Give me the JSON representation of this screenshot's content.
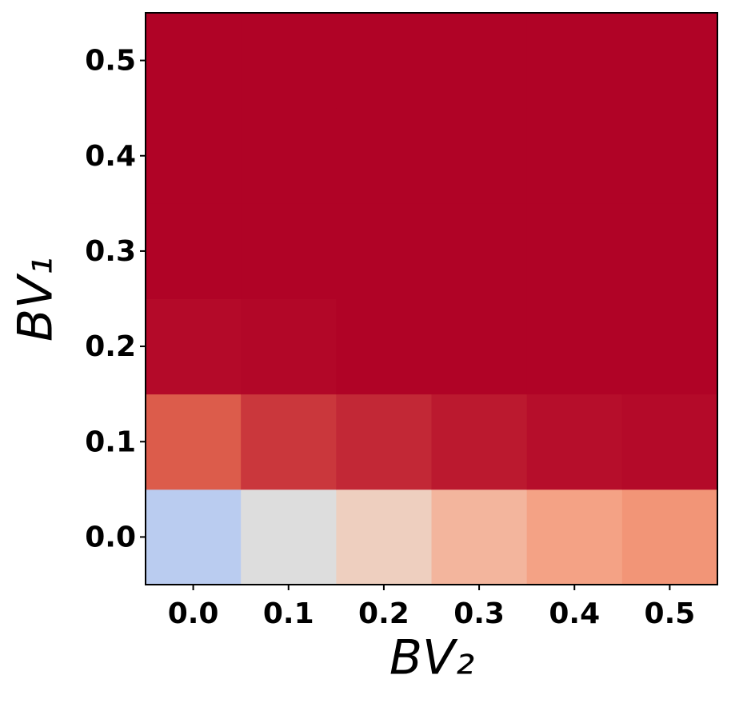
{
  "chart_data": {
    "type": "heatmap",
    "colorscale": "coolwarm",
    "zlim": [
      0,
      1
    ],
    "x": [
      0,
      0.1,
      0.2,
      0.3,
      0.4,
      0.5
    ],
    "y": [
      0,
      0.1,
      0.2,
      0.3,
      0.4,
      0.5
    ],
    "z": [
      [
        0.43,
        0.5,
        0.6,
        0.68,
        0.73,
        0.76
      ],
      [
        0.88,
        0.93,
        0.95,
        0.97,
        0.985,
        0.99
      ],
      [
        0.99,
        0.995,
        1,
        1,
        1,
        1
      ],
      [
        1,
        1,
        1,
        1,
        1,
        1
      ],
      [
        1,
        1,
        1,
        1,
        1,
        1
      ],
      [
        1,
        1,
        1,
        1,
        1,
        1
      ]
    ],
    "xlim": [
      -0.05,
      0.55
    ],
    "ylim": [
      -0.05,
      0.55
    ],
    "xticks": [
      {
        "value": 0,
        "label": "0.0"
      },
      0.1,
      0.2,
      0.3,
      0.4,
      0.5
    ],
    "yticks": [
      {
        "value": 0,
        "label": "0.0"
      },
      0.1,
      0.2,
      0.3,
      0.4,
      0.5
    ],
    "x_label": "BV₂",
    "y_label": "BV₁"
  }
}
